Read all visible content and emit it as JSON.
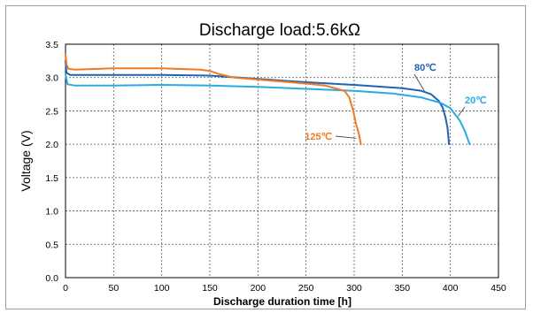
{
  "chart_data": {
    "type": "line",
    "title": "Discharge load:5.6kΩ",
    "xlabel": "Discharge duration time [h]",
    "ylabel": "Voltage (V)",
    "xlim": [
      0,
      450
    ],
    "ylim": [
      0.0,
      3.5
    ],
    "x_ticks": [
      "0",
      "50",
      "100",
      "150",
      "200",
      "250",
      "300",
      "350",
      "400",
      "450"
    ],
    "y_ticks": [
      "0.0",
      "0.5",
      "1.0",
      "1.5",
      "2.0",
      "2.5",
      "3.0",
      "3.5"
    ],
    "grid": true,
    "series": [
      {
        "name": "80℃",
        "color": "#1f63b3",
        "label_anchor": [
          415,
          3.04
        ],
        "points": [
          [
            0,
            3.25
          ],
          [
            1,
            3.07
          ],
          [
            5,
            3.04
          ],
          [
            50,
            3.04
          ],
          [
            100,
            3.04
          ],
          [
            150,
            3.03
          ],
          [
            200,
            2.98
          ],
          [
            250,
            2.93
          ],
          [
            300,
            2.89
          ],
          [
            350,
            2.84
          ],
          [
            370,
            2.8
          ],
          [
            380,
            2.75
          ],
          [
            388,
            2.65
          ],
          [
            392,
            2.55
          ],
          [
            395,
            2.4
          ],
          [
            397,
            2.25
          ],
          [
            398,
            2.1
          ],
          [
            398.5,
            2.0
          ]
        ]
      },
      {
        "name": "20℃",
        "color": "#29abe2",
        "label_anchor": [
          425,
          2.68
        ],
        "points": [
          [
            0,
            3.05
          ],
          [
            2,
            2.9
          ],
          [
            10,
            2.88
          ],
          [
            50,
            2.88
          ],
          [
            100,
            2.89
          ],
          [
            150,
            2.88
          ],
          [
            200,
            2.86
          ],
          [
            250,
            2.83
          ],
          [
            300,
            2.8
          ],
          [
            340,
            2.76
          ],
          [
            370,
            2.7
          ],
          [
            390,
            2.62
          ],
          [
            400,
            2.54
          ],
          [
            410,
            2.35
          ],
          [
            415,
            2.2
          ],
          [
            420,
            2.0
          ]
        ]
      },
      {
        "name": "125℃",
        "color": "#f07a21",
        "label_anchor": [
          302,
          2.09
        ],
        "points": [
          [
            0,
            3.35
          ],
          [
            1,
            3.2
          ],
          [
            3,
            3.13
          ],
          [
            10,
            3.12
          ],
          [
            50,
            3.14
          ],
          [
            100,
            3.14
          ],
          [
            140,
            3.12
          ],
          [
            150,
            3.1
          ],
          [
            160,
            3.05
          ],
          [
            175,
            3.0
          ],
          [
            200,
            2.97
          ],
          [
            250,
            2.91
          ],
          [
            270,
            2.88
          ],
          [
            290,
            2.8
          ],
          [
            295,
            2.7
          ],
          [
            299,
            2.5
          ],
          [
            302,
            2.3
          ],
          [
            305,
            2.15
          ],
          [
            307,
            2.0
          ]
        ]
      }
    ]
  }
}
